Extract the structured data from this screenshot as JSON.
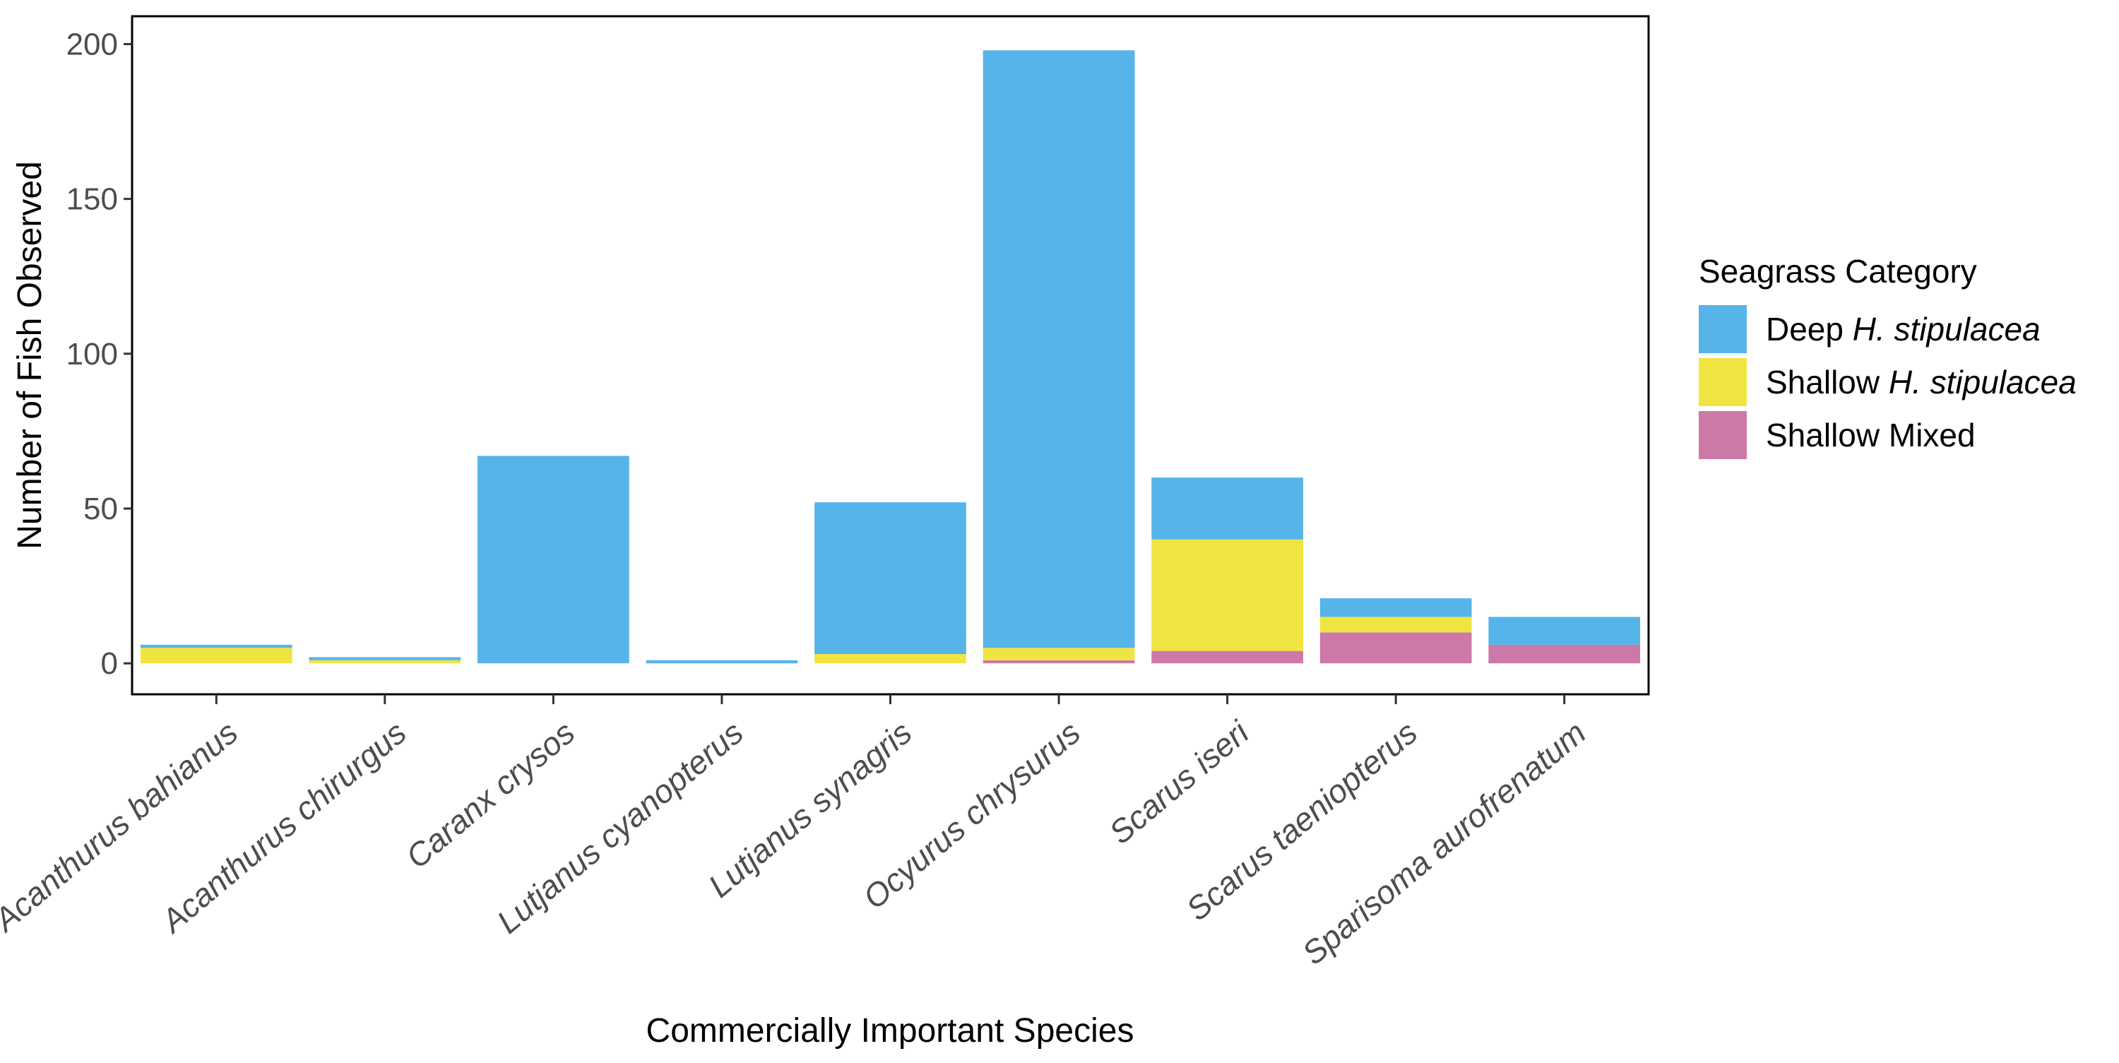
{
  "chart_data": {
    "type": "bar",
    "stacked": true,
    "xlabel": "Commercially Important Species",
    "ylabel": "Number of Fish Observed",
    "ylim": [
      -10,
      209
    ],
    "yticks": [
      0,
      50,
      100,
      150,
      200
    ],
    "grid": false,
    "categories": [
      "Acanthurus bahianus",
      "Acanthurus chirurgus",
      "Caranx crysos",
      "Lutjanus cyanopterus",
      "Lutjanus synagris",
      "Ocyurus chrysurus",
      "Scarus iseri",
      "Scarus taeniopterus",
      "Sparisoma aurofrenatum"
    ],
    "series": [
      {
        "name": "Shallow Mixed",
        "color": "#CC79A7",
        "values": [
          0,
          0,
          0,
          0,
          0,
          1,
          4,
          10,
          6
        ]
      },
      {
        "name": "Shallow H. stipulacea",
        "color": "#F0E442",
        "values": [
          5,
          1,
          0,
          0,
          3,
          4,
          36,
          5,
          0
        ]
      },
      {
        "name": "Deep H. stipulacea",
        "color": "#56B4E9",
        "values": [
          1,
          1,
          67,
          1,
          49,
          193,
          20,
          6,
          9
        ]
      }
    ],
    "legend": {
      "title": "Seagrass Category",
      "position": "right",
      "entries": [
        {
          "prefix": "Deep ",
          "italic": "H. stipulacea",
          "color": "#56B4E9"
        },
        {
          "prefix": "Shallow ",
          "italic": "H. stipulacea",
          "color": "#F0E442"
        },
        {
          "prefix": "Shallow Mixed",
          "italic": "",
          "color": "#CC79A7"
        }
      ]
    }
  }
}
